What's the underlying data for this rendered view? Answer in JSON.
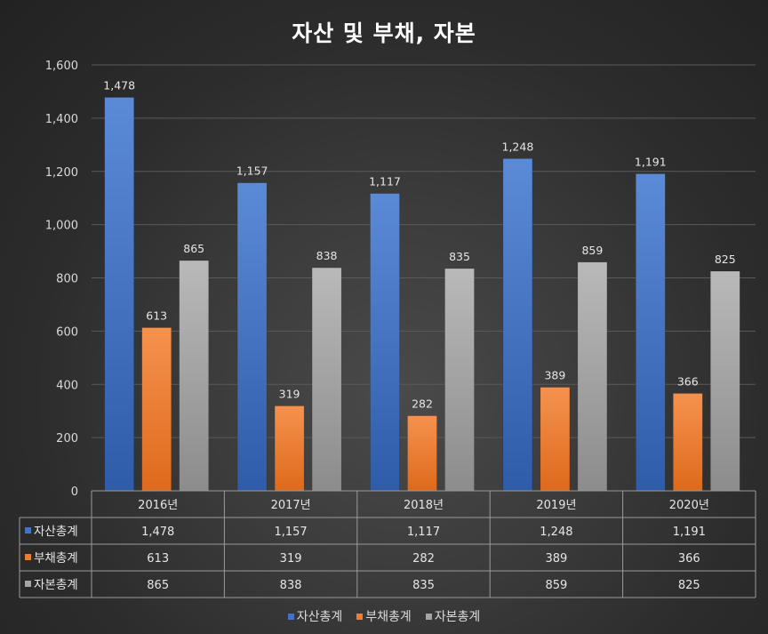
{
  "chart_data": {
    "type": "bar",
    "title": "자산 및 부채, 자본",
    "categories": [
      "2016년",
      "2017년",
      "2018년",
      "2019년",
      "2020년"
    ],
    "series": [
      {
        "name": "자산총계",
        "values": [
          1478,
          1157,
          1117,
          1248,
          1191
        ],
        "labels": [
          "1,478",
          "1,157",
          "1,117",
          "1,248",
          "1,191"
        ],
        "color": "#4472C4"
      },
      {
        "name": "부채총계",
        "values": [
          613,
          319,
          282,
          389,
          366
        ],
        "labels": [
          "613",
          "319",
          "282",
          "389",
          "366"
        ],
        "color": "#ED7D31"
      },
      {
        "name": "자본총계",
        "values": [
          865,
          838,
          835,
          859,
          825
        ],
        "labels": [
          "865",
          "838",
          "835",
          "859",
          "825"
        ],
        "color": "#A5A5A5"
      }
    ],
    "ylim": [
      0,
      1600
    ],
    "yticks": [
      0,
      200,
      400,
      600,
      800,
      1000,
      1200,
      1400,
      1600
    ],
    "ytick_labels": [
      "0",
      "200",
      "400",
      "600",
      "800",
      "1,000",
      "1,200",
      "1,400",
      "1,600"
    ],
    "grid": true,
    "data_table": true,
    "legend_position": "bottom"
  }
}
